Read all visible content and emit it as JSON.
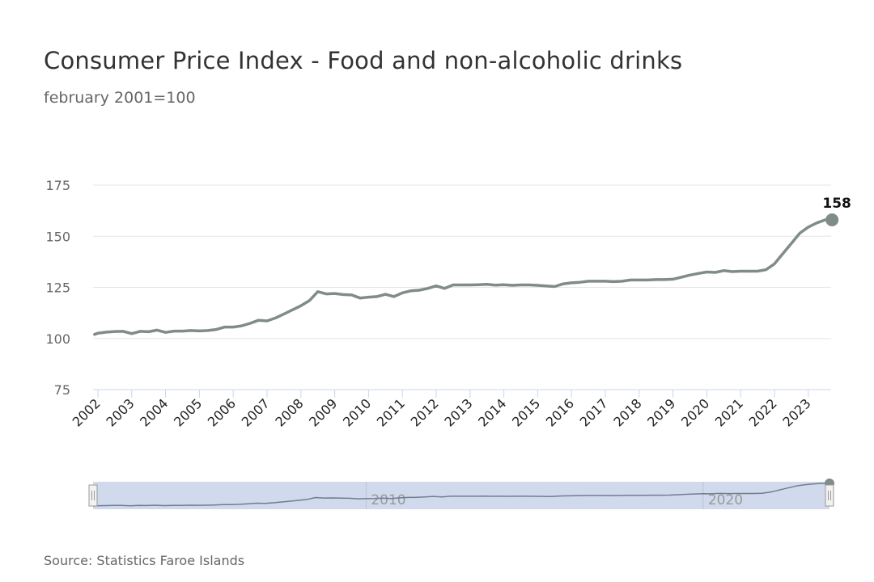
{
  "chart_data": {
    "type": "line",
    "title": "Consumer Price Index - Food and non-alcoholic drinks",
    "subtitle": "february 2001=100",
    "source": "Source: Statistics Faroe Islands",
    "xlabel": "",
    "ylabel": "",
    "ylim": [
      75,
      175
    ],
    "yticks": [
      75,
      100,
      125,
      150,
      175
    ],
    "xticks": [
      "2002",
      "2003",
      "2004",
      "2005",
      "2006",
      "2007",
      "2008",
      "2009",
      "2010",
      "2011",
      "2012",
      "2013",
      "2014",
      "2015",
      "2016",
      "2017",
      "2018",
      "2019",
      "2020",
      "2021",
      "2022",
      "2023"
    ],
    "xlim": [
      2001.9,
      2023.75
    ],
    "grid": true,
    "legend": "none",
    "line_color": "#7f8c8a",
    "navigator": {
      "range": [
        2001.9,
        2023.75
      ],
      "labels": [
        "2010",
        "2020"
      ],
      "fill_color": "#ccd6eb"
    },
    "last_point_label": "158",
    "series": [
      {
        "name": "Food and non-alcoholic drinks",
        "x": [
          2001.9,
          2002.0,
          2002.25,
          2002.5,
          2002.75,
          2003.0,
          2003.25,
          2003.5,
          2003.75,
          2004.0,
          2004.25,
          2004.5,
          2004.75,
          2005.0,
          2005.25,
          2005.5,
          2005.75,
          2006.0,
          2006.25,
          2006.5,
          2006.75,
          2007.0,
          2007.25,
          2007.5,
          2007.75,
          2008.0,
          2008.25,
          2008.5,
          2008.75,
          2009.0,
          2009.25,
          2009.5,
          2009.75,
          2010.0,
          2010.25,
          2010.5,
          2010.75,
          2011.0,
          2011.25,
          2011.5,
          2011.75,
          2012.0,
          2012.25,
          2012.5,
          2012.75,
          2013.0,
          2013.25,
          2013.5,
          2013.75,
          2014.0,
          2014.25,
          2014.5,
          2014.75,
          2015.0,
          2015.25,
          2015.5,
          2015.75,
          2016.0,
          2016.25,
          2016.5,
          2016.75,
          2017.0,
          2017.25,
          2017.5,
          2017.75,
          2018.0,
          2018.25,
          2018.5,
          2018.75,
          2019.0,
          2019.25,
          2019.5,
          2019.75,
          2020.0,
          2020.25,
          2020.5,
          2020.75,
          2021.0,
          2021.25,
          2021.5,
          2021.75,
          2022.0,
          2022.25,
          2022.5,
          2022.75,
          2023.0,
          2023.25,
          2023.5,
          2023.75
        ],
        "values": [
          102.0,
          102.6,
          103.1,
          103.4,
          103.5,
          102.4,
          103.5,
          103.3,
          104.1,
          103.0,
          103.6,
          103.6,
          103.9,
          103.7,
          103.9,
          104.4,
          105.6,
          105.6,
          106.2,
          107.4,
          108.9,
          108.6,
          110.0,
          112.0,
          114.0,
          116.0,
          118.5,
          122.9,
          121.8,
          122.0,
          121.5,
          121.3,
          119.8,
          120.2,
          120.5,
          121.6,
          120.5,
          122.3,
          123.3,
          123.6,
          124.5,
          125.7,
          124.5,
          126.2,
          126.2,
          126.2,
          126.3,
          126.5,
          126.1,
          126.3,
          126.0,
          126.2,
          126.2,
          126.0,
          125.7,
          125.4,
          126.7,
          127.2,
          127.5,
          128.0,
          128.0,
          128.0,
          127.8,
          128.0,
          128.6,
          128.6,
          128.6,
          128.8,
          128.8,
          129.0,
          130.0,
          131.0,
          131.8,
          132.5,
          132.3,
          133.2,
          132.7,
          132.9,
          132.9,
          132.9,
          133.6,
          136.5,
          141.5,
          146.5,
          151.5,
          154.5,
          156.5,
          158.0,
          158.0
        ]
      }
    ]
  }
}
